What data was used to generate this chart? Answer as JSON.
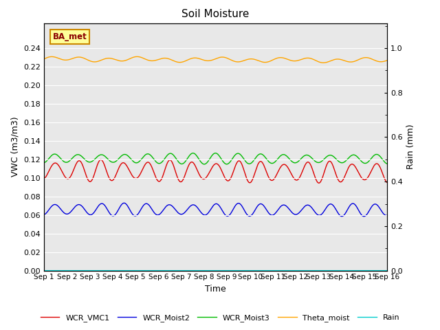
{
  "title": "Soil Moisture",
  "ylabel_left": "VWC (m3/m3)",
  "ylabel_right": "Rain (mm)",
  "xlabel": "Time",
  "annotation": "BA_met",
  "ylim_left": [
    0.0,
    0.2667
  ],
  "ylim_right": [
    0.0,
    1.1125
  ],
  "background_color": "#e8e8e8",
  "fig_background": "#ffffff",
  "series": {
    "WCR_VMC1": {
      "color": "#dd0000",
      "base": 0.108,
      "amp": 0.01,
      "trend": -0.00015
    },
    "WCR_Moist2": {
      "color": "#0000dd",
      "base": 0.066,
      "amp": 0.006,
      "trend": -5e-05
    },
    "WCR_Moist3": {
      "color": "#00bb00",
      "base": 0.121,
      "amp": 0.005,
      "trend": -5e-05
    },
    "Theta_moist": {
      "color": "#ffa500",
      "base": 0.228,
      "amp": 0.002,
      "trend": -0.0001
    },
    "Rain": {
      "color": "#00cccc",
      "base": 0.0,
      "amp": 0.0,
      "trend": 0.0
    }
  },
  "legend_order": [
    "WCR_VMC1",
    "WCR_Moist2",
    "WCR_Moist3",
    "Theta_moist",
    "Rain"
  ],
  "xtick_labels": [
    "Sep 1",
    "Sep 2",
    "Sep 3",
    "Sep 4",
    "Sep 5",
    "Sep 6",
    "Sep 7",
    "Sep 8",
    "Sep 9",
    "Sep 10",
    "Sep 11",
    "Sep 12",
    "Sep 13",
    "Sep 14",
    "Sep 15",
    "Sep 16"
  ],
  "yticks_left": [
    0.0,
    0.02,
    0.04,
    0.06,
    0.08,
    0.1,
    0.12,
    0.14,
    0.16,
    0.18,
    0.2,
    0.22,
    0.24
  ],
  "yticks_right": [
    0.0,
    0.2,
    0.4,
    0.6,
    0.8,
    1.0
  ],
  "n_days": 15,
  "points_per_day": 96
}
